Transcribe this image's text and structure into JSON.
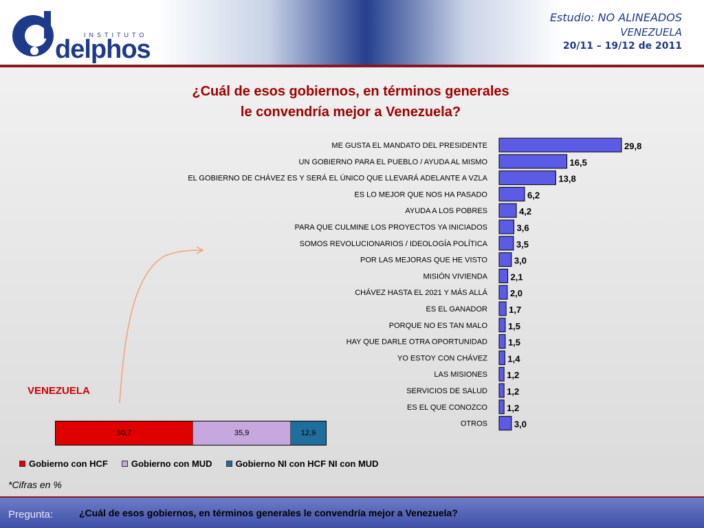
{
  "header": {
    "logo_small": "INSTITUTO",
    "logo_name": "delphos",
    "study_prefix": "Estudio:",
    "study_name": "NO ALINEADOS",
    "country": "VENEZUELA",
    "dates": "20/11 – 19/12 de 2011"
  },
  "title_line1": "¿Cuál de esos  gobiernos, en términos generales",
  "title_line2": "le convendría mejor a Venezuela?",
  "chart_data": [
    {
      "type": "bar",
      "orientation": "horizontal",
      "title": "¿Cuál de esos  gobiernos, en términos generales le convendría mejor a Venezuela?",
      "categories": [
        "ME GUSTA EL MANDATO DEL PRESIDENTE",
        "UN GOBIERNO PARA EL PUEBLO / AYUDA AL MISMO",
        "EL GOBIERNO DE CHÁVEZ ES Y SERÁ EL ÚNICO QUE LLEVARÁ ADELANTE A VZLA",
        "ES LO MEJOR QUE NOS HA PASADO",
        "AYUDA A LOS POBRES",
        "PARA QUE CULMINE LOS PROYECTOS YA INICIADOS",
        "SOMOS REVOLUCIONARIOS / IDEOLOGÍA POLÍTICA",
        "POR LAS MEJORAS QUE HE VISTO",
        "MISIÓN VIVIENDA",
        "CHÁVEZ HASTA EL 2021 Y MÁS ALLÁ",
        "ES EL GANADOR",
        "PORQUE NO ES TAN MALO",
        "HAY QUE DARLE OTRA OPORTUNIDAD",
        "YO ESTOY CON CHÁVEZ",
        "LAS MISIONES",
        "SERVICIOS DE SALUD",
        "ES EL QUE CONOZCO",
        "OTROS"
      ],
      "values": [
        29.8,
        16.5,
        13.8,
        6.2,
        4.2,
        3.6,
        3.5,
        3.0,
        2.1,
        2.0,
        1.7,
        1.5,
        1.5,
        1.4,
        1.2,
        1.2,
        1.2,
        3.0
      ],
      "value_labels": [
        "29,8",
        "16,5",
        "13,8",
        "6,2",
        "4,2",
        "3,6",
        "3,5",
        "3,0",
        "2,1",
        "2,0",
        "1,7",
        "1,5",
        "1,5",
        "1,4",
        "1,2",
        "1,2",
        "1,2",
        "3,0"
      ],
      "bar_color": "#5b5be6"
    },
    {
      "type": "bar",
      "orientation": "horizontal",
      "stacked": true,
      "title": "VENEZUELA",
      "categories": [
        "VENEZUELA"
      ],
      "series": [
        {
          "name": "Gobierno con HCF",
          "values": [
            50.7
          ],
          "label": "50,7",
          "color": "#e00000"
        },
        {
          "name": "Gobierno con MUD",
          "values": [
            35.9
          ],
          "label": "35,9",
          "color": "#c6a8de"
        },
        {
          "name": "Gobierno NI con HCF NI con MUD",
          "values": [
            12.9
          ],
          "label": "12,9",
          "color": "#1e6f9e"
        }
      ],
      "legend": "bottom"
    }
  ],
  "footnote": "*Cifras en %",
  "footer": {
    "label": "Pregunta:",
    "question": "¿Cuál de esos  gobiernos, en términos generales le convendría mejor a Venezuela?"
  }
}
